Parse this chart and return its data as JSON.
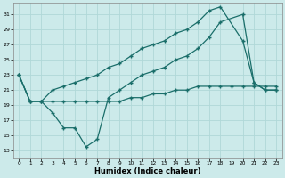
{
  "xlabel": "Humidex (Indice chaleur)",
  "bg_color": "#cceaea",
  "line_color": "#1a6e6a",
  "grid_color": "#b0d8d8",
  "xlim": [
    -0.5,
    23.5
  ],
  "ylim": [
    12,
    32.5
  ],
  "xtick_labels": [
    "0",
    "1",
    "2",
    "3",
    "4",
    "5",
    "6",
    "7",
    "8",
    "9",
    "10",
    "11",
    "12",
    "13",
    "14",
    "15",
    "16",
    "17",
    "18",
    "19",
    "20",
    "21",
    "22",
    "23"
  ],
  "yticks": [
    13,
    15,
    17,
    19,
    21,
    23,
    25,
    27,
    29,
    31
  ],
  "line1_x": [
    0,
    1,
    2,
    3,
    4,
    5,
    6,
    7,
    8,
    9,
    10,
    11,
    12,
    13,
    14,
    15,
    16,
    17,
    18,
    20,
    21,
    22,
    23
  ],
  "line1_y": [
    23,
    19.5,
    19.5,
    18,
    16,
    16,
    13.5,
    14.5,
    20,
    21,
    22,
    23,
    23.5,
    24,
    25,
    25.5,
    26.5,
    28,
    30,
    31,
    22,
    21,
    21
  ],
  "line2_x": [
    0,
    1,
    2,
    3,
    4,
    5,
    6,
    7,
    8,
    9,
    10,
    11,
    12,
    13,
    14,
    15,
    16,
    17,
    18,
    20,
    21,
    22,
    23
  ],
  "line2_y": [
    23,
    19.5,
    19.5,
    21,
    21.5,
    22,
    22.5,
    23,
    24,
    24.5,
    25.5,
    26.5,
    27,
    27.5,
    28.5,
    29,
    30,
    31.5,
    32,
    27.5,
    22,
    21,
    21
  ],
  "line3_x": [
    0,
    1,
    2,
    3,
    4,
    5,
    6,
    7,
    8,
    9,
    10,
    11,
    12,
    13,
    14,
    15,
    16,
    17,
    18,
    19,
    20,
    21,
    22,
    23
  ],
  "line3_y": [
    23,
    19.5,
    19.5,
    19.5,
    19.5,
    19.5,
    19.5,
    19.5,
    19.5,
    19.5,
    20,
    20,
    20.5,
    20.5,
    21,
    21,
    21.5,
    21.5,
    21.5,
    21.5,
    21.5,
    21.5,
    21.5,
    21.5
  ]
}
